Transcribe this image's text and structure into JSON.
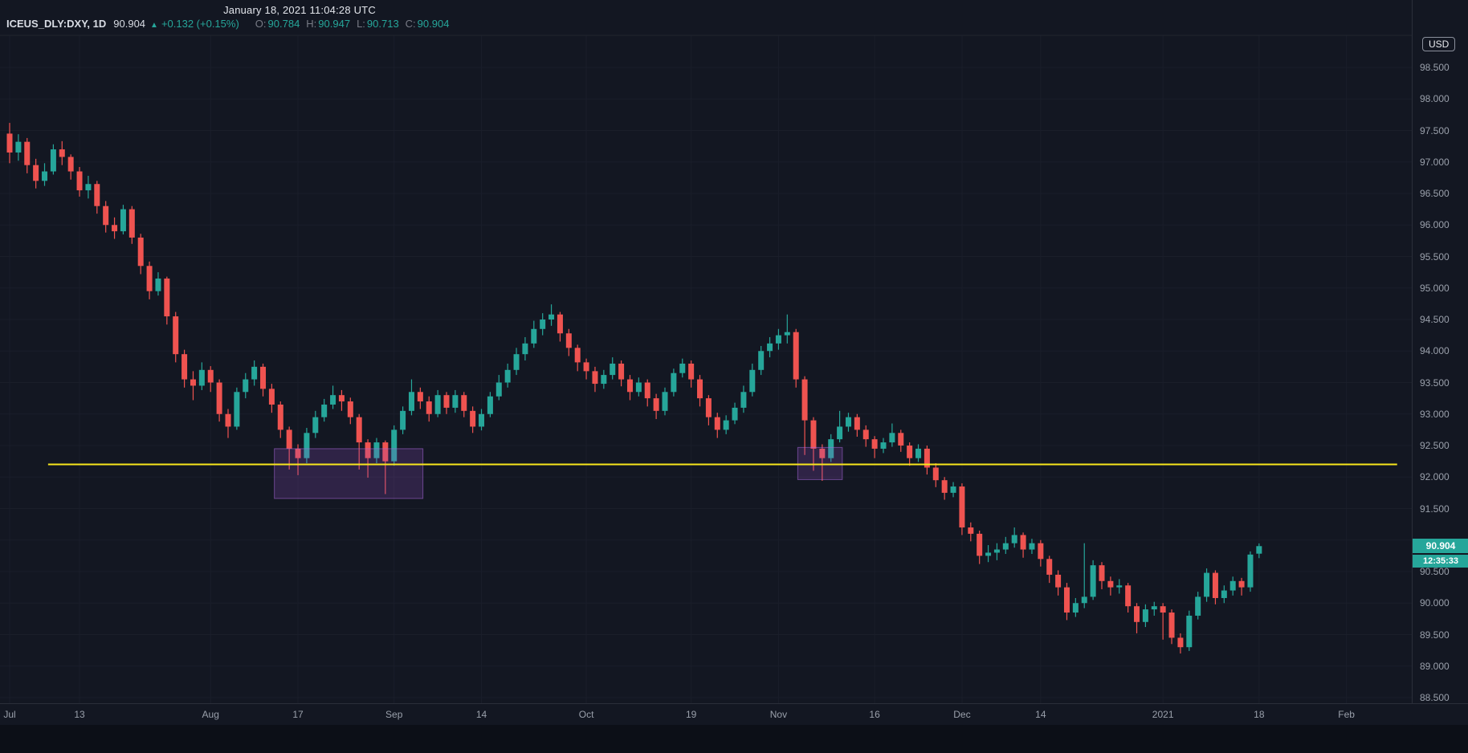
{
  "header": {
    "timestamp": "January 18, 2021 11:04:28 UTC",
    "legend": {
      "symbol": "ICEUS_DLY:DXY, 1D",
      "last": "90.904",
      "direction": "▲",
      "change": "+0.132 (+0.15%)",
      "ohlc": [
        {
          "label": "O:",
          "value": "90.784"
        },
        {
          "label": "H:",
          "value": "90.947"
        },
        {
          "label": "L:",
          "value": "90.713"
        },
        {
          "label": "C:",
          "value": "90.904"
        }
      ]
    }
  },
  "price_axis": {
    "currency": "USD",
    "labels": [
      "98.500",
      "98.000",
      "97.500",
      "97.000",
      "96.500",
      "96.000",
      "95.500",
      "95.000",
      "94.500",
      "94.000",
      "93.500",
      "93.000",
      "92.500",
      "92.000",
      "91.500",
      "90.500",
      "90.000",
      "89.500",
      "89.000",
      "88.500"
    ],
    "last_price_label": {
      "value": "90.904",
      "countdown": "12:35:33"
    }
  },
  "time_axis": {
    "ticks": [
      {
        "i": 0,
        "label": "Jul"
      },
      {
        "i": 8,
        "label": "13"
      },
      {
        "i": 23,
        "label": "Aug"
      },
      {
        "i": 33,
        "label": "17"
      },
      {
        "i": 44,
        "label": "Sep"
      },
      {
        "i": 54,
        "label": "14"
      },
      {
        "i": 66,
        "label": "Oct"
      },
      {
        "i": 78,
        "label": "19"
      },
      {
        "i": 88,
        "label": "Nov"
      },
      {
        "i": 99,
        "label": "16"
      },
      {
        "i": 109,
        "label": "Dec"
      },
      {
        "i": 118,
        "label": "14"
      },
      {
        "i": 132,
        "label": "2021"
      },
      {
        "i": 143,
        "label": "18"
      },
      {
        "i": 153,
        "label": "Feb"
      }
    ]
  },
  "chart_data": {
    "type": "candlestick",
    "title": "ICEUS_DLY:DXY 1D",
    "ylabel": "USD",
    "ylim": [
      88.3,
      98.75
    ],
    "x_range": "Jul 2020 - Feb 2021",
    "colors": {
      "up": "#26a69a",
      "down": "#ef5350",
      "background": "#131722",
      "grid": "#1a1e2a",
      "axis_text": "#9aa0ab",
      "yellow_line": "#f8e71c",
      "zone_fill": "rgba(150,80,200,0.22)",
      "zone_border": "rgba(170,105,220,0.55)"
    },
    "drawings": {
      "horizontal_line": {
        "price": 92.2,
        "i1": 4.4,
        "i2": 158.8,
        "color": "#f8e71c"
      },
      "zones": [
        {
          "i1": 30.3,
          "i2": 47.3,
          "p_top": 92.45,
          "p_bottom": 91.66
        },
        {
          "i1": 90.2,
          "i2": 95.3,
          "p_top": 92.47,
          "p_bottom": 91.96
        }
      ]
    },
    "candles": [
      [
        97.45,
        97.62,
        96.98,
        97.15
      ],
      [
        97.15,
        97.44,
        97.02,
        97.32
      ],
      [
        97.32,
        97.38,
        96.82,
        96.95
      ],
      [
        96.95,
        97.05,
        96.58,
        96.7
      ],
      [
        96.7,
        96.98,
        96.62,
        96.85
      ],
      [
        96.85,
        97.28,
        96.8,
        97.2
      ],
      [
        97.2,
        97.33,
        96.95,
        97.08
      ],
      [
        97.08,
        97.12,
        96.72,
        96.85
      ],
      [
        96.85,
        96.92,
        96.45,
        96.55
      ],
      [
        96.55,
        96.78,
        96.42,
        96.65
      ],
      [
        96.65,
        96.7,
        96.18,
        96.3
      ],
      [
        96.3,
        96.38,
        95.88,
        96.0
      ],
      [
        96.0,
        96.12,
        95.78,
        95.9
      ],
      [
        95.9,
        96.32,
        95.85,
        96.25
      ],
      [
        96.25,
        96.3,
        95.7,
        95.8
      ],
      [
        95.8,
        95.86,
        95.22,
        95.35
      ],
      [
        95.35,
        95.42,
        94.82,
        94.95
      ],
      [
        94.95,
        95.25,
        94.88,
        95.15
      ],
      [
        95.15,
        95.18,
        94.42,
        94.55
      ],
      [
        94.55,
        94.62,
        93.82,
        93.95
      ],
      [
        93.95,
        94.02,
        93.42,
        93.55
      ],
      [
        93.55,
        93.68,
        93.22,
        93.45
      ],
      [
        93.45,
        93.82,
        93.38,
        93.7
      ],
      [
        93.7,
        93.76,
        93.35,
        93.5
      ],
      [
        93.5,
        93.55,
        92.88,
        93.0
      ],
      [
        93.0,
        93.08,
        92.62,
        92.8
      ],
      [
        92.8,
        93.42,
        92.75,
        93.35
      ],
      [
        93.35,
        93.65,
        93.25,
        93.55
      ],
      [
        93.55,
        93.85,
        93.45,
        93.75
      ],
      [
        93.75,
        93.8,
        93.28,
        93.4
      ],
      [
        93.4,
        93.48,
        93.02,
        93.15
      ],
      [
        93.15,
        93.2,
        92.62,
        92.75
      ],
      [
        92.75,
        92.8,
        92.12,
        92.45
      ],
      [
        92.45,
        92.52,
        92.03,
        92.3
      ],
      [
        92.3,
        92.78,
        92.22,
        92.7
      ],
      [
        92.7,
        93.05,
        92.62,
        92.95
      ],
      [
        92.95,
        93.24,
        92.88,
        93.15
      ],
      [
        93.15,
        93.45,
        93.08,
        93.3
      ],
      [
        93.3,
        93.38,
        93.05,
        93.2
      ],
      [
        93.2,
        93.26,
        92.84,
        92.95
      ],
      [
        92.95,
        93.0,
        92.12,
        92.55
      ],
      [
        92.55,
        92.6,
        91.99,
        92.3
      ],
      [
        92.3,
        92.62,
        92.22,
        92.55
      ],
      [
        92.55,
        92.58,
        91.73,
        92.25
      ],
      [
        92.25,
        92.82,
        92.18,
        92.75
      ],
      [
        92.75,
        93.12,
        92.68,
        93.05
      ],
      [
        93.05,
        93.55,
        92.98,
        93.35
      ],
      [
        93.35,
        93.42,
        93.08,
        93.2
      ],
      [
        93.2,
        93.28,
        92.88,
        93.0
      ],
      [
        93.0,
        93.38,
        92.95,
        93.3
      ],
      [
        93.3,
        93.35,
        93.0,
        93.1
      ],
      [
        93.1,
        93.38,
        93.02,
        93.3
      ],
      [
        93.3,
        93.35,
        92.95,
        93.05
      ],
      [
        93.05,
        93.12,
        92.7,
        92.8
      ],
      [
        92.8,
        93.08,
        92.74,
        93.0
      ],
      [
        93.0,
        93.35,
        92.95,
        93.28
      ],
      [
        93.28,
        93.62,
        93.22,
        93.5
      ],
      [
        93.5,
        93.8,
        93.42,
        93.7
      ],
      [
        93.7,
        94.05,
        93.62,
        93.95
      ],
      [
        93.95,
        94.22,
        93.85,
        94.12
      ],
      [
        94.12,
        94.48,
        94.05,
        94.35
      ],
      [
        94.35,
        94.6,
        94.25,
        94.5
      ],
      [
        94.5,
        94.74,
        94.4,
        94.58
      ],
      [
        94.58,
        94.62,
        94.15,
        94.28
      ],
      [
        94.28,
        94.35,
        93.92,
        94.05
      ],
      [
        94.05,
        94.1,
        93.68,
        93.82
      ],
      [
        93.82,
        93.88,
        93.55,
        93.68
      ],
      [
        93.68,
        93.75,
        93.35,
        93.48
      ],
      [
        93.48,
        93.7,
        93.4,
        93.62
      ],
      [
        93.62,
        93.9,
        93.55,
        93.8
      ],
      [
        93.8,
        93.85,
        93.44,
        93.55
      ],
      [
        93.55,
        93.62,
        93.22,
        93.35
      ],
      [
        93.35,
        93.58,
        93.28,
        93.5
      ],
      [
        93.5,
        93.55,
        93.12,
        93.25
      ],
      [
        93.25,
        93.32,
        92.92,
        93.05
      ],
      [
        93.05,
        93.42,
        92.98,
        93.35
      ],
      [
        93.35,
        93.72,
        93.28,
        93.65
      ],
      [
        93.65,
        93.88,
        93.58,
        93.8
      ],
      [
        93.8,
        93.85,
        93.42,
        93.55
      ],
      [
        93.55,
        93.62,
        93.12,
        93.25
      ],
      [
        93.25,
        93.3,
        92.82,
        92.95
      ],
      [
        92.95,
        93.02,
        92.62,
        92.75
      ],
      [
        92.75,
        92.98,
        92.68,
        92.9
      ],
      [
        92.9,
        93.18,
        92.84,
        93.1
      ],
      [
        93.1,
        93.45,
        93.02,
        93.35
      ],
      [
        93.35,
        93.8,
        93.28,
        93.7
      ],
      [
        93.7,
        94.08,
        93.62,
        94.0
      ],
      [
        94.0,
        94.22,
        93.9,
        94.12
      ],
      [
        94.12,
        94.35,
        94.02,
        94.25
      ],
      [
        94.25,
        94.58,
        94.12,
        94.3
      ],
      [
        94.3,
        94.35,
        93.42,
        93.55
      ],
      [
        93.55,
        93.6,
        92.35,
        92.9
      ],
      [
        92.9,
        92.95,
        92.1,
        92.45
      ],
      [
        92.45,
        92.52,
        91.94,
        92.3
      ],
      [
        92.3,
        92.68,
        92.24,
        92.6
      ],
      [
        92.6,
        93.05,
        92.55,
        92.8
      ],
      [
        92.8,
        93.02,
        92.72,
        92.95
      ],
      [
        92.95,
        93.0,
        92.64,
        92.75
      ],
      [
        92.75,
        92.82,
        92.48,
        92.6
      ],
      [
        92.6,
        92.65,
        92.3,
        92.45
      ],
      [
        92.45,
        92.62,
        92.38,
        92.55
      ],
      [
        92.55,
        92.85,
        92.48,
        92.7
      ],
      [
        92.7,
        92.75,
        92.4,
        92.5
      ],
      [
        92.5,
        92.55,
        92.18,
        92.3
      ],
      [
        92.3,
        92.52,
        92.24,
        92.45
      ],
      [
        92.45,
        92.5,
        92.04,
        92.15
      ],
      [
        92.15,
        92.22,
        91.84,
        91.95
      ],
      [
        91.95,
        92.0,
        91.64,
        91.75
      ],
      [
        91.75,
        91.92,
        91.68,
        91.85
      ],
      [
        91.85,
        91.9,
        91.08,
        91.2
      ],
      [
        91.2,
        91.28,
        90.98,
        91.1
      ],
      [
        91.1,
        91.15,
        90.62,
        90.75
      ],
      [
        90.75,
        90.92,
        90.65,
        90.8
      ],
      [
        90.8,
        90.95,
        90.68,
        90.85
      ],
      [
        90.85,
        91.05,
        90.78,
        90.95
      ],
      [
        90.95,
        91.2,
        90.88,
        91.08
      ],
      [
        91.08,
        91.12,
        90.72,
        90.85
      ],
      [
        90.85,
        91.02,
        90.78,
        90.95
      ],
      [
        90.95,
        91.0,
        90.58,
        90.7
      ],
      [
        90.7,
        90.75,
        90.32,
        90.45
      ],
      [
        90.45,
        90.52,
        90.12,
        90.25
      ],
      [
        90.25,
        90.32,
        89.73,
        89.85
      ],
      [
        89.85,
        90.08,
        89.78,
        90.0
      ],
      [
        90.0,
        90.95,
        89.92,
        90.1
      ],
      [
        90.1,
        90.68,
        90.05,
        90.6
      ],
      [
        90.6,
        90.65,
        90.22,
        90.35
      ],
      [
        90.35,
        90.42,
        90.12,
        90.25
      ],
      [
        90.25,
        90.38,
        90.15,
        90.28
      ],
      [
        90.28,
        90.32,
        89.85,
        89.95
      ],
      [
        89.95,
        90.0,
        89.52,
        89.7
      ],
      [
        89.7,
        89.98,
        89.62,
        89.9
      ],
      [
        89.9,
        90.02,
        89.8,
        89.95
      ],
      [
        89.95,
        90.0,
        89.42,
        89.85
      ],
      [
        89.85,
        89.9,
        89.35,
        89.45
      ],
      [
        89.45,
        89.52,
        89.2,
        89.3
      ],
      [
        89.3,
        89.88,
        89.24,
        89.8
      ],
      [
        89.8,
        90.18,
        89.74,
        90.1
      ],
      [
        90.1,
        90.55,
        90.02,
        90.48
      ],
      [
        90.48,
        90.52,
        89.98,
        90.08
      ],
      [
        90.08,
        90.28,
        90.0,
        90.2
      ],
      [
        90.2,
        90.42,
        90.12,
        90.35
      ],
      [
        90.35,
        90.4,
        90.12,
        90.25
      ],
      [
        90.25,
        90.82,
        90.18,
        90.77
      ],
      [
        90.784,
        90.947,
        90.713,
        90.904
      ]
    ]
  }
}
